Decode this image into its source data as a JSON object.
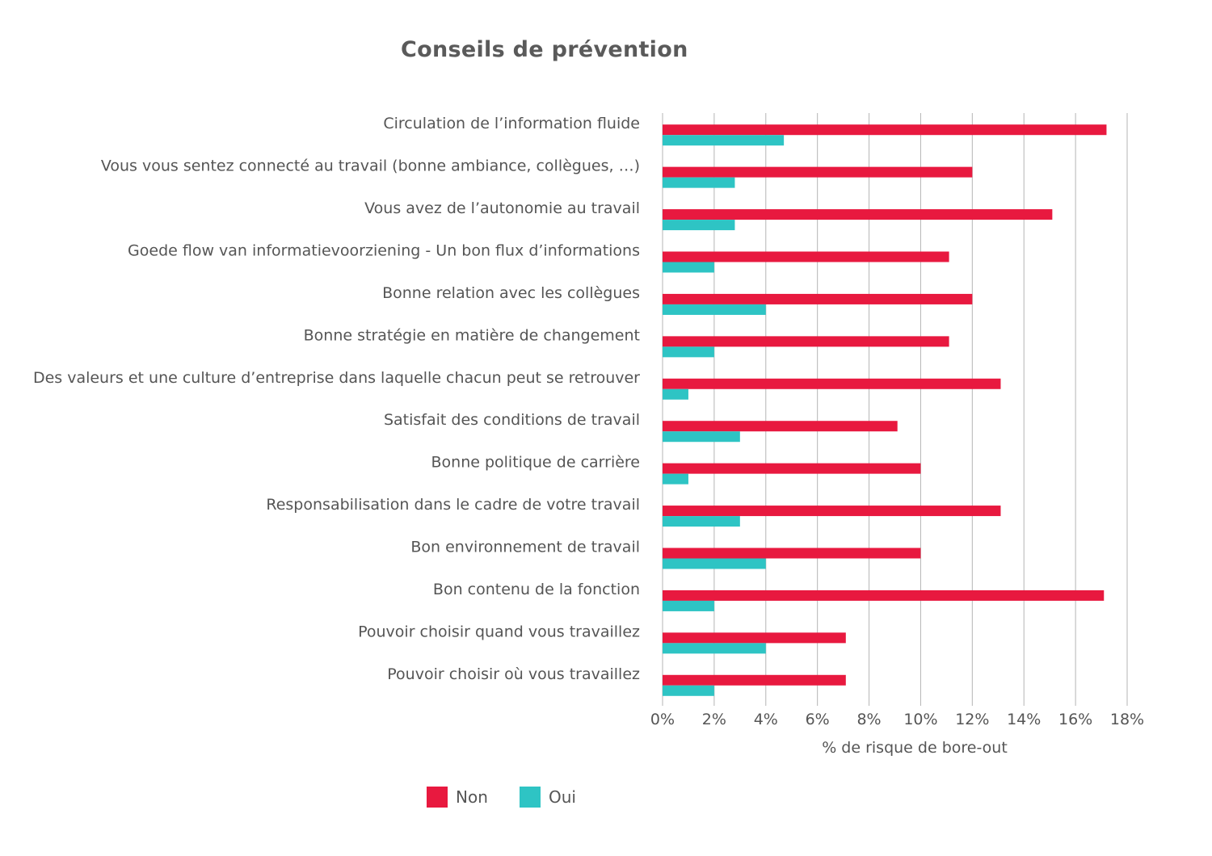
{
  "colors": {
    "non": "#E8193F",
    "oui": "#2EC4C4",
    "grid": "#b5b5b5",
    "text": "#555555"
  },
  "chart_data": {
    "type": "bar",
    "orientation": "horizontal",
    "title": "Conseils de prévention",
    "xlabel": "% de risque de bore-out",
    "ylabel": "",
    "xlim": [
      0,
      18
    ],
    "xticks": [
      0,
      2,
      4,
      6,
      8,
      10,
      12,
      14,
      16,
      18
    ],
    "tick_labels": [
      "0%",
      "2%",
      "4%",
      "6%",
      "8%",
      "10%",
      "12%",
      "14%",
      "16%",
      "18%"
    ],
    "grid": "vertical",
    "legend_position": "bottom",
    "categories": [
      "Circulation de l’information fluide",
      "Vous vous sentez connecté au travail (bonne ambiance, collègues, …)",
      "Vous avez de l’autonomie au travail",
      "Goede flow van informatievoorziening - Un bon flux d’informations",
      "Bonne relation avec les collègues",
      "Bonne stratégie en matière de changement",
      "Des valeurs et une culture d’entreprise dans laquelle chacun peut se retrouver",
      "Satisfait des conditions de travail",
      "Bonne politique de carrière",
      "Responsabilisation dans le cadre de votre travail",
      "Bon environnement de travail",
      "Bon contenu de la fonction",
      "Pouvoir choisir quand vous travaillez",
      "Pouvoir choisir où vous travaillez"
    ],
    "series": [
      {
        "name": "Non",
        "values": [
          17.2,
          12.0,
          15.1,
          11.1,
          12.0,
          11.1,
          13.1,
          9.1,
          10.0,
          13.1,
          10.0,
          17.1,
          7.1,
          7.1
        ]
      },
      {
        "name": "Oui",
        "values": [
          4.7,
          2.8,
          2.8,
          2.0,
          4.0,
          2.0,
          1.0,
          3.0,
          1.0,
          3.0,
          4.0,
          2.0,
          4.0,
          2.0
        ]
      }
    ]
  }
}
